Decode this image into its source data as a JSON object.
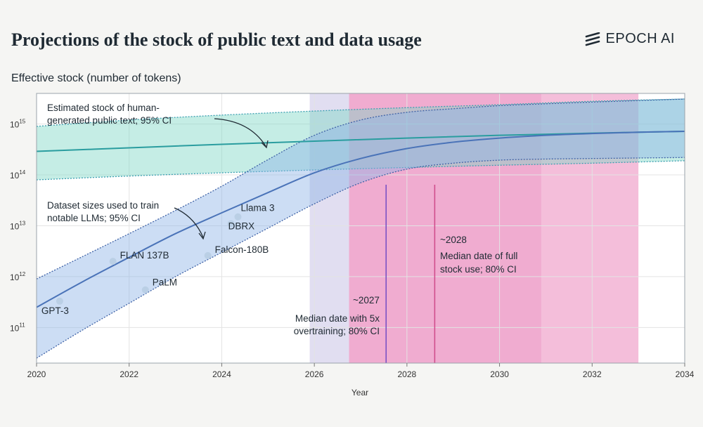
{
  "title": "Projections of the stock of public text and data usage",
  "brand": {
    "name": "EPOCH AI",
    "logo_icon": "epoch-stripes-icon"
  },
  "chart_data": {
    "type": "line",
    "ylabel": "Effective stock (number of tokens)",
    "xlabel": "Year",
    "xlim": [
      2020,
      2034
    ],
    "ylim": [
      20000000000,
      4000000000000000
    ],
    "y_scale": "log",
    "x_ticks": [
      "2020",
      "2022",
      "2024",
      "2026",
      "2028",
      "2030",
      "2032",
      "2034"
    ],
    "y_ticks": [
      {
        "value": 100000000000,
        "base": "10",
        "exp": "11"
      },
      {
        "value": 1000000000000,
        "base": "10",
        "exp": "12"
      },
      {
        "value": 10000000000000,
        "base": "10",
        "exp": "13"
      },
      {
        "value": 100000000000000,
        "base": "10",
        "exp": "14"
      },
      {
        "value": 1000000000000000,
        "base": "10",
        "exp": "15"
      }
    ],
    "grid": true,
    "stock": {
      "x": [
        2020,
        2022,
        2024,
        2026,
        2028,
        2030,
        2032,
        2034
      ],
      "median": [
        290000000000000,
        340000000000000,
        400000000000000,
        460000000000000,
        530000000000000,
        600000000000000,
        660000000000000,
        720000000000000
      ],
      "lower": [
        80000000000000,
        95000000000000,
        110000000000000,
        125000000000000,
        140000000000000,
        155000000000000,
        170000000000000,
        190000000000000
      ],
      "upper": [
        900000000000000,
        1200000000000000,
        1500000000000000,
        1800000000000000,
        2100000000000000,
        2400000000000000,
        2800000000000000,
        3100000000000000
      ],
      "color": "#2a9d9f"
    },
    "dataset": {
      "x": [
        2020,
        2021,
        2022,
        2023,
        2024,
        2025,
        2026,
        2027,
        2028,
        2029,
        2030,
        2031,
        2032,
        2033,
        2034
      ],
      "median": [
        250000000000,
        800000000000,
        2400000000000,
        7000000000000,
        18000000000000,
        45000000000000,
        110000000000000,
        210000000000000,
        330000000000000,
        440000000000000,
        530000000000000,
        600000000000000,
        650000000000000,
        690000000000000,
        720000000000000
      ],
      "lower": [
        25000000000,
        90000000000,
        300000000000,
        1000000000000,
        3000000000000,
        9000000000000,
        27000000000000,
        70000000000000,
        130000000000000,
        170000000000000,
        195000000000000,
        205000000000000,
        210000000000000,
        215000000000000,
        220000000000000
      ],
      "upper": [
        900000000000,
        2500000000000,
        7000000000000,
        20000000000000,
        60000000000000,
        200000000000000,
        600000000000000,
        1200000000000000,
        1700000000000000,
        2000000000000000,
        2300000000000000,
        2500000000000000,
        2700000000000000,
        2900000000000000,
        3100000000000000
      ],
      "color": "#4a73b8"
    },
    "models": [
      {
        "label": "GPT-3",
        "x": 2020.5,
        "y": 330000000000
      },
      {
        "label": "FLAN 137B",
        "x": 2021.65,
        "y": 2000000000000
      },
      {
        "label": "PaLM",
        "x": 2022.35,
        "y": 550000000000
      },
      {
        "label": "Falcon-180B",
        "x": 2023.7,
        "y": 2600000000000
      },
      {
        "label": "DBRX",
        "x": 2024.2,
        "y": 11000000000000
      },
      {
        "label": "Llama 3",
        "x": 2024.35,
        "y": 15000000000000
      }
    ],
    "ci_regions": [
      {
        "name": "overtraining",
        "x0": 2025.9,
        "x1": 2026.75,
        "color": "#dcd8ee"
      },
      {
        "name": "full",
        "x0": 2026.75,
        "x1": 2033.0,
        "color": "#f2b3d4"
      }
    ],
    "median_lines": [
      {
        "x": 2027.55,
        "color": "#7a52c4"
      },
      {
        "x": 2028.6,
        "color": "#d14d8c"
      }
    ],
    "annotations": {
      "stock_ci": [
        "Estimated stock of human-",
        "generated public text; 95% CI"
      ],
      "dataset_ci": [
        "Dataset sizes used to train",
        "notable LLMs; 95% CI"
      ],
      "median_2027": "~2027",
      "overtraining": [
        "Median date with 5x",
        "overtraining; 80% CI"
      ],
      "median_2028": "~2028",
      "full_stock": [
        "Median date of full",
        "stock use; 80% CI"
      ]
    }
  }
}
